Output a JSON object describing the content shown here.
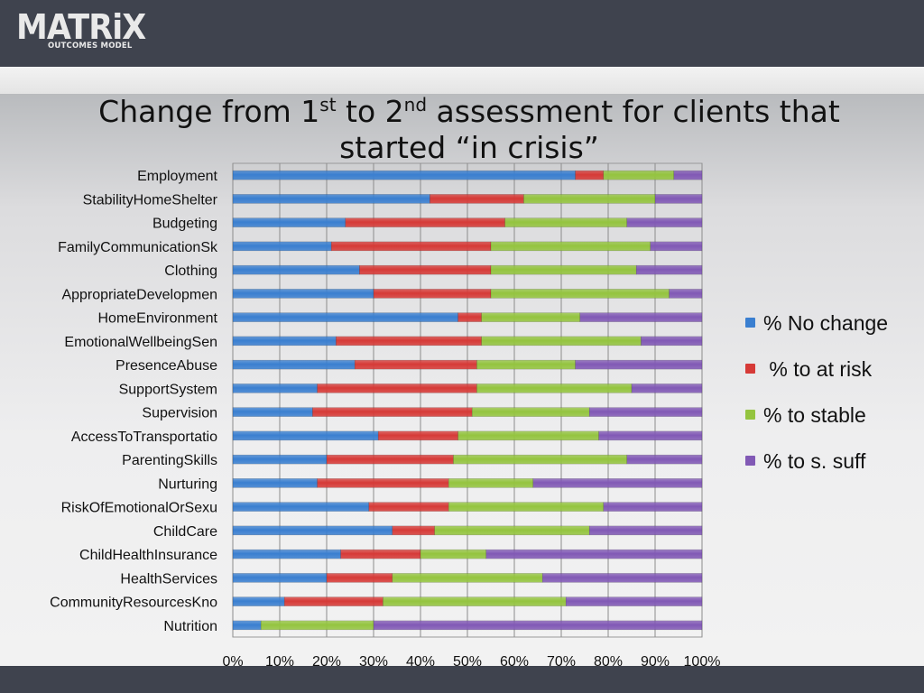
{
  "logo": {
    "name": "MATRiX",
    "tagline": "OUTCOMES MODEL"
  },
  "title": {
    "pre": "Change from 1",
    "sup1": "st",
    "mid": " to 2",
    "sup2": "nd",
    "post": " assessment for clients that started “in crisis”"
  },
  "colors": {
    "no_change": "#3a7fd0",
    "at_risk": "#d63a37",
    "stable": "#94c43f",
    "s_suff": "#8159b5"
  },
  "chart_data": {
    "type": "bar",
    "orientation": "horizontal",
    "stacked": "100%",
    "categories": [
      "Employment",
      "StabilityHomeShelter",
      "Budgeting",
      "FamilyCommunicationSk",
      "Clothing",
      "AppropriateDevelopmen",
      "HomeEnvironment",
      "EmotionalWellbeingSen",
      "PresenceAbuse",
      "SupportSystem",
      "Supervision",
      "AccessToTransportatio",
      "ParentingSkills",
      "Nurturing",
      "RiskOfEmotionalOrSexu",
      "ChildCare",
      "ChildHealthInsurance",
      "HealthServices",
      "CommunityResourcesKno",
      "Nutrition"
    ],
    "series": [
      {
        "name": "% No change",
        "color": "#3a7fd0",
        "values": [
          73,
          42,
          24,
          21,
          27,
          30,
          48,
          22,
          26,
          18,
          17,
          31,
          20,
          18,
          29,
          34,
          23,
          20,
          11,
          6
        ]
      },
      {
        "name": " % to at risk",
        "color": "#d63a37",
        "values": [
          6,
          20,
          34,
          34,
          28,
          25,
          5,
          31,
          26,
          34,
          34,
          17,
          27,
          28,
          17,
          9,
          17,
          14,
          21,
          0
        ]
      },
      {
        "name": "% to stable",
        "color": "#94c43f",
        "values": [
          15,
          28,
          26,
          34,
          31,
          38,
          21,
          34,
          21,
          33,
          25,
          30,
          37,
          18,
          33,
          33,
          14,
          32,
          39,
          24
        ]
      },
      {
        "name": "% to s. suff",
        "color": "#8159b5",
        "values": [
          6,
          10,
          16,
          11,
          14,
          7,
          26,
          13,
          27,
          15,
          24,
          22,
          16,
          36,
          21,
          24,
          46,
          34,
          29,
          70
        ]
      }
    ],
    "x_ticks": [
      "0%",
      "10%",
      "20%",
      "30%",
      "40%",
      "50%",
      "60%",
      "70%",
      "80%",
      "90%",
      "100%"
    ],
    "xlim": [
      0,
      100
    ],
    "grid": true,
    "legend_position": "right"
  }
}
